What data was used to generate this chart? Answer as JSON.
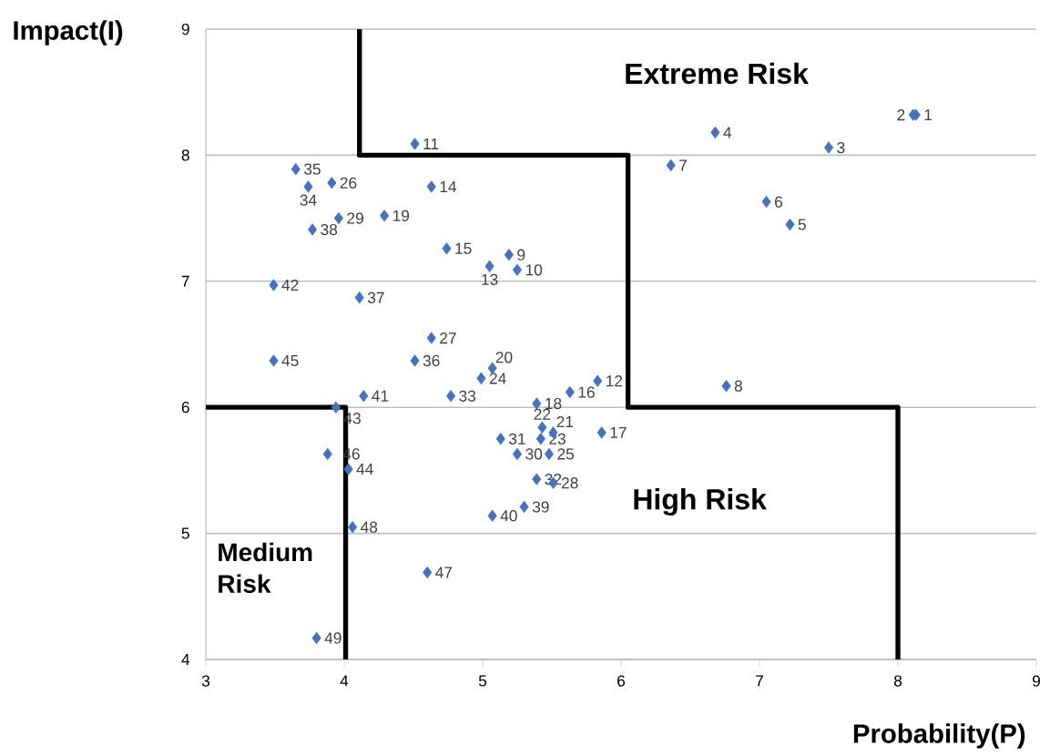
{
  "chart_data": {
    "type": "scatter",
    "xlabel": "Probability(P)",
    "ylabel": "Impact(I)",
    "xlim": [
      3,
      9
    ],
    "ylim": [
      4,
      9
    ],
    "xticks": [
      3,
      4,
      5,
      6,
      7,
      8,
      9
    ],
    "yticks": [
      4,
      5,
      6,
      7,
      8,
      9
    ],
    "grid": "y",
    "marker": "diamond",
    "annotations": [
      "Extreme Risk",
      "High Risk",
      "Medium Risk",
      {
        "text": "1",
        "x": 8.13,
        "y": 8.32
      },
      {
        "text": "2",
        "x": 8.11,
        "y": 8.32
      },
      {
        "text": "3",
        "x": 7.5,
        "y": 8.06
      },
      {
        "text": "4",
        "x": 6.68,
        "y": 8.18
      },
      {
        "text": "5",
        "x": 7.22,
        "y": 7.45
      },
      {
        "text": "6",
        "x": 7.05,
        "y": 7.63
      },
      {
        "text": "7",
        "x": 6.36,
        "y": 7.92
      },
      {
        "text": "8",
        "x": 6.76,
        "y": 6.17
      },
      {
        "text": "9",
        "x": 5.19,
        "y": 7.21
      },
      {
        "text": "10",
        "x": 5.25,
        "y": 7.09
      },
      {
        "text": "11",
        "x": 4.51,
        "y": 8.09
      },
      {
        "text": "12",
        "x": 5.83,
        "y": 6.21
      },
      {
        "text": "13",
        "x": 5.05,
        "y": 7.12
      },
      {
        "text": "14",
        "x": 4.63,
        "y": 7.75
      },
      {
        "text": "15",
        "x": 4.74,
        "y": 7.26
      },
      {
        "text": "16",
        "x": 5.63,
        "y": 6.12
      },
      {
        "text": "17",
        "x": 5.86,
        "y": 5.8
      },
      {
        "text": "18",
        "x": 5.39,
        "y": 6.03
      },
      {
        "text": "19",
        "x": 4.29,
        "y": 7.52
      },
      {
        "text": "20",
        "x": 5.07,
        "y": 6.31
      },
      {
        "text": "21",
        "x": 5.51,
        "y": 5.8
      },
      {
        "text": "22",
        "x": 5.43,
        "y": 5.84
      },
      {
        "text": "23",
        "x": 5.42,
        "y": 5.75
      },
      {
        "text": "24",
        "x": 4.99,
        "y": 6.23
      },
      {
        "text": "25",
        "x": 5.48,
        "y": 5.63
      },
      {
        "text": "26",
        "x": 3.91,
        "y": 7.78
      },
      {
        "text": "27",
        "x": 4.63,
        "y": 6.55
      },
      {
        "text": "28",
        "x": 5.51,
        "y": 5.4
      },
      {
        "text": "29",
        "x": 3.96,
        "y": 7.5
      },
      {
        "text": "30",
        "x": 5.25,
        "y": 5.63
      },
      {
        "text": "31",
        "x": 5.13,
        "y": 5.75
      },
      {
        "text": "32",
        "x": 5.39,
        "y": 5.43
      },
      {
        "text": "33",
        "x": 4.77,
        "y": 6.09
      },
      {
        "text": "34",
        "x": 3.74,
        "y": 7.75
      },
      {
        "text": "35",
        "x": 3.65,
        "y": 7.89
      },
      {
        "text": "36",
        "x": 4.51,
        "y": 6.37
      },
      {
        "text": "37",
        "x": 4.11,
        "y": 6.87
      },
      {
        "text": "38",
        "x": 3.77,
        "y": 7.41
      },
      {
        "text": "39",
        "x": 5.3,
        "y": 5.21
      },
      {
        "text": "40",
        "x": 5.07,
        "y": 5.14
      },
      {
        "text": "41",
        "x": 4.14,
        "y": 6.09
      },
      {
        "text": "42",
        "x": 3.49,
        "y": 6.97
      },
      {
        "text": "43",
        "x": 3.94,
        "y": 6.0
      },
      {
        "text": "44",
        "x": 4.03,
        "y": 5.51
      },
      {
        "text": "45",
        "x": 3.49,
        "y": 6.37
      },
      {
        "text": "46",
        "x": 3.88,
        "y": 5.63
      },
      {
        "text": "47",
        "x": 4.6,
        "y": 4.69
      },
      {
        "text": "48",
        "x": 4.06,
        "y": 5.05
      },
      {
        "text": "49",
        "x": 3.8,
        "y": 4.17
      }
    ],
    "series": [
      {
        "color": "#4472c4",
        "x": [
          8.13,
          8.11,
          7.5,
          6.68,
          7.22,
          7.05,
          6.36,
          6.76,
          5.19,
          5.25,
          4.51,
          5.83,
          5.05,
          4.63,
          4.74,
          5.63,
          5.86,
          5.39,
          4.29,
          5.07,
          5.51,
          5.43,
          5.42,
          4.99,
          5.48,
          3.91,
          4.63,
          5.51,
          3.96,
          5.25,
          5.13,
          5.39,
          4.77,
          3.74,
          3.65,
          4.51,
          4.11,
          3.77,
          5.3,
          5.07,
          4.14,
          3.49,
          3.94,
          4.03,
          3.49,
          3.88,
          4.6,
          4.06,
          3.8
        ],
        "values": [
          8.32,
          8.32,
          8.06,
          8.18,
          7.45,
          7.63,
          7.92,
          6.17,
          7.21,
          7.09,
          8.09,
          6.21,
          7.12,
          7.75,
          7.26,
          6.12,
          5.8,
          6.03,
          7.52,
          6.31,
          5.8,
          5.84,
          5.75,
          6.23,
          5.63,
          7.78,
          6.55,
          5.4,
          7.5,
          5.63,
          5.75,
          5.43,
          6.09,
          7.75,
          7.89,
          6.37,
          6.87,
          7.41,
          5.21,
          5.14,
          6.09,
          6.97,
          6.0,
          5.51,
          6.37,
          5.63,
          4.69,
          5.05,
          4.17
        ]
      },
      {
        "type": "line",
        "color": "#000000",
        "marker": "none",
        "x": [
          4.11,
          4.11,
          6.05,
          6.05,
          8,
          8
        ],
        "values": [
          9,
          8,
          8,
          6,
          6,
          4
        ]
      },
      {
        "type": "line",
        "color": "#000000",
        "marker": "none",
        "x": [
          3,
          4.01,
          4.01
        ],
        "values": [
          6,
          6,
          4
        ]
      }
    ]
  }
}
